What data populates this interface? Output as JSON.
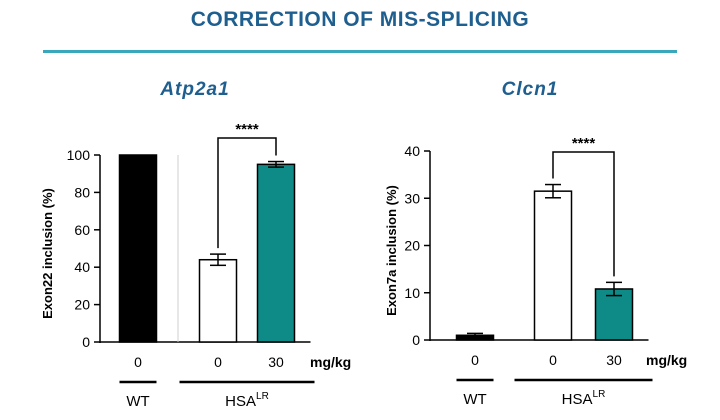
{
  "header": {
    "title": "CORRECTION OF MIS-SPLICING",
    "title_color": "#1f5f8f",
    "rule_color": "#3ba7bd"
  },
  "colors": {
    "wt_bar": "#000000",
    "treated_bar": "#0e8a87",
    "untreated_bar": "#ffffff",
    "gene_title": "#1f5f8f"
  },
  "chart_data": [
    {
      "type": "bar",
      "title": "Atp2a1",
      "ylabel": "Exon22 inclusion (%)",
      "ylim": [
        0,
        100
      ],
      "yticks": [
        0,
        20,
        40,
        60,
        80,
        100
      ],
      "dose_unit": "mg/kg",
      "categories": [
        "0",
        "0",
        "30"
      ],
      "values": [
        100,
        44,
        95
      ],
      "errors": [
        0,
        3,
        1.5
      ],
      "bar_fills": [
        "black",
        "white",
        "teal"
      ],
      "groups": [
        {
          "label": "WT",
          "superscript": "",
          "bars": [
            0
          ]
        },
        {
          "label": "HSA",
          "superscript": "LR",
          "bars": [
            1,
            2
          ]
        }
      ],
      "significance": {
        "from": 1,
        "to": 2,
        "label": "****"
      },
      "group_separator_line": true
    },
    {
      "type": "bar",
      "title": "Clcn1",
      "ylabel": "Exon7a inclusion (%)",
      "ylim": [
        0,
        40
      ],
      "yticks": [
        0,
        10,
        20,
        30,
        40
      ],
      "dose_unit": "mg/kg",
      "categories": [
        "0",
        "0",
        "30"
      ],
      "values": [
        1,
        31.5,
        10.8
      ],
      "errors": [
        0.4,
        1.4,
        1.4
      ],
      "bar_fills": [
        "black",
        "white",
        "teal"
      ],
      "groups": [
        {
          "label": "WT",
          "superscript": "",
          "bars": [
            0
          ]
        },
        {
          "label": "HSA",
          "superscript": "LR",
          "bars": [
            1,
            2
          ]
        }
      ],
      "significance": {
        "from": 1,
        "to": 2,
        "label": "****"
      },
      "group_separator_line": false
    }
  ]
}
